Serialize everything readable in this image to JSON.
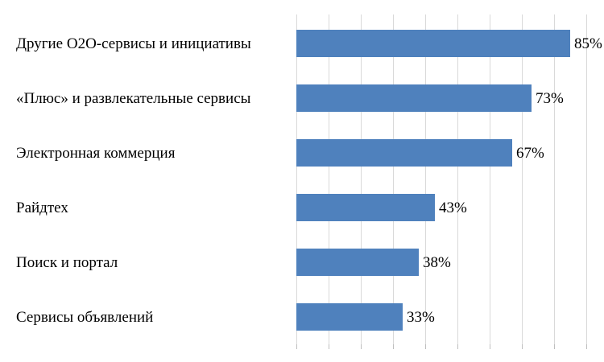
{
  "chart_data": {
    "type": "bar",
    "orientation": "horizontal",
    "title": "",
    "xlabel": "",
    "ylabel": "",
    "categories": [
      "Другие O2O-сервисы и инициативы",
      "«Плюс» и развлекательные сервисы",
      "Электронная коммерция",
      "Райдтех",
      "Поиск и портал",
      "Сервисы объявлений"
    ],
    "values": [
      85,
      73,
      67,
      43,
      38,
      33
    ],
    "data_labels": [
      "85%",
      "73%",
      "67%",
      "43%",
      "38%",
      "33%"
    ],
    "unit": "%",
    "xlim": [
      0,
      100
    ],
    "grid": "vertical",
    "legend": "none",
    "bar_color": "#4f81bd"
  }
}
